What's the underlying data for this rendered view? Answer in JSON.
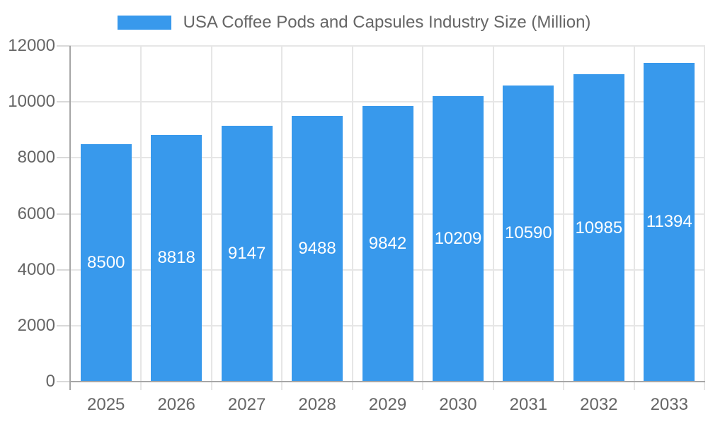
{
  "chart_data": {
    "type": "bar",
    "title": "USA Coffee Pods and Capsules Industry Size (Million)",
    "legend": {
      "position": "top",
      "label": "USA Coffee Pods and Capsules Industry Size (Million)"
    },
    "categories": [
      "2025",
      "2026",
      "2027",
      "2028",
      "2029",
      "2030",
      "2031",
      "2032",
      "2033"
    ],
    "values": [
      8500,
      8818,
      9147,
      9488,
      9842,
      10209,
      10590,
      10985,
      11394
    ],
    "value_labels_visible": true,
    "xlabel": "",
    "ylabel": "",
    "ylim": [
      0,
      12000
    ],
    "yticks": [
      0,
      2000,
      4000,
      6000,
      8000,
      10000,
      12000
    ],
    "grid": true,
    "colors": {
      "bar": "#3899ec",
      "bar_value_text": "#ffffff",
      "axis_text": "#666666",
      "axis_line": "#a6a6a6",
      "gridline": "#e6e6e6",
      "tick_mark": "#d9d9d9",
      "background": "#ffffff"
    }
  }
}
